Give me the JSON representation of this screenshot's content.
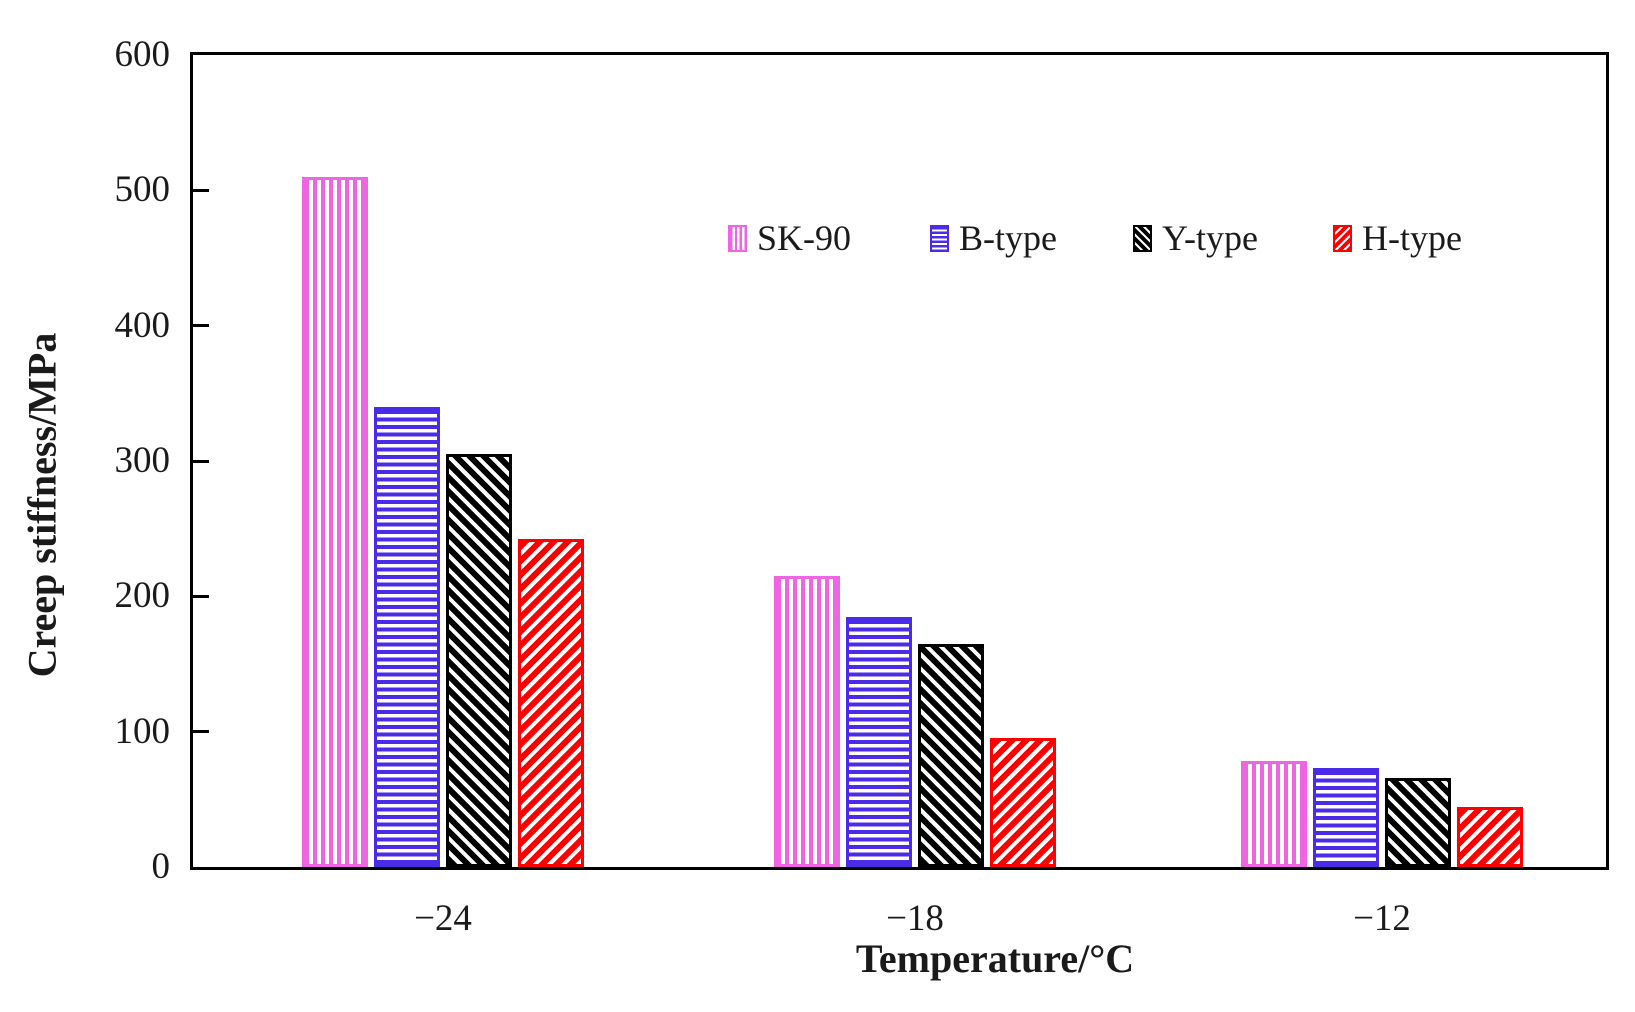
{
  "chart_data": {
    "type": "bar",
    "title": "",
    "xlabel": "Temperature/°C",
    "ylabel": "Creep stiffness/MPa",
    "categories": [
      "−24",
      "−18",
      "−12"
    ],
    "series": [
      {
        "name": "SK-90",
        "color": "#ee64e2",
        "pattern": "vertical",
        "values": [
          510,
          215,
          78
        ]
      },
      {
        "name": "B-type",
        "color": "#4b2be8",
        "pattern": "horizontal",
        "values": [
          340,
          185,
          73
        ]
      },
      {
        "name": "Y-type",
        "color": "#000000",
        "pattern": "diag-down",
        "values": [
          305,
          165,
          66
        ]
      },
      {
        "name": "H-type",
        "color": "#ff0000",
        "pattern": "diag-up",
        "values": [
          242,
          95,
          44
        ]
      }
    ],
    "ylim": [
      0,
      600
    ],
    "yticks": [
      0,
      100,
      200,
      300,
      400,
      500,
      600
    ],
    "grid": false,
    "legend_position": "top-center"
  }
}
